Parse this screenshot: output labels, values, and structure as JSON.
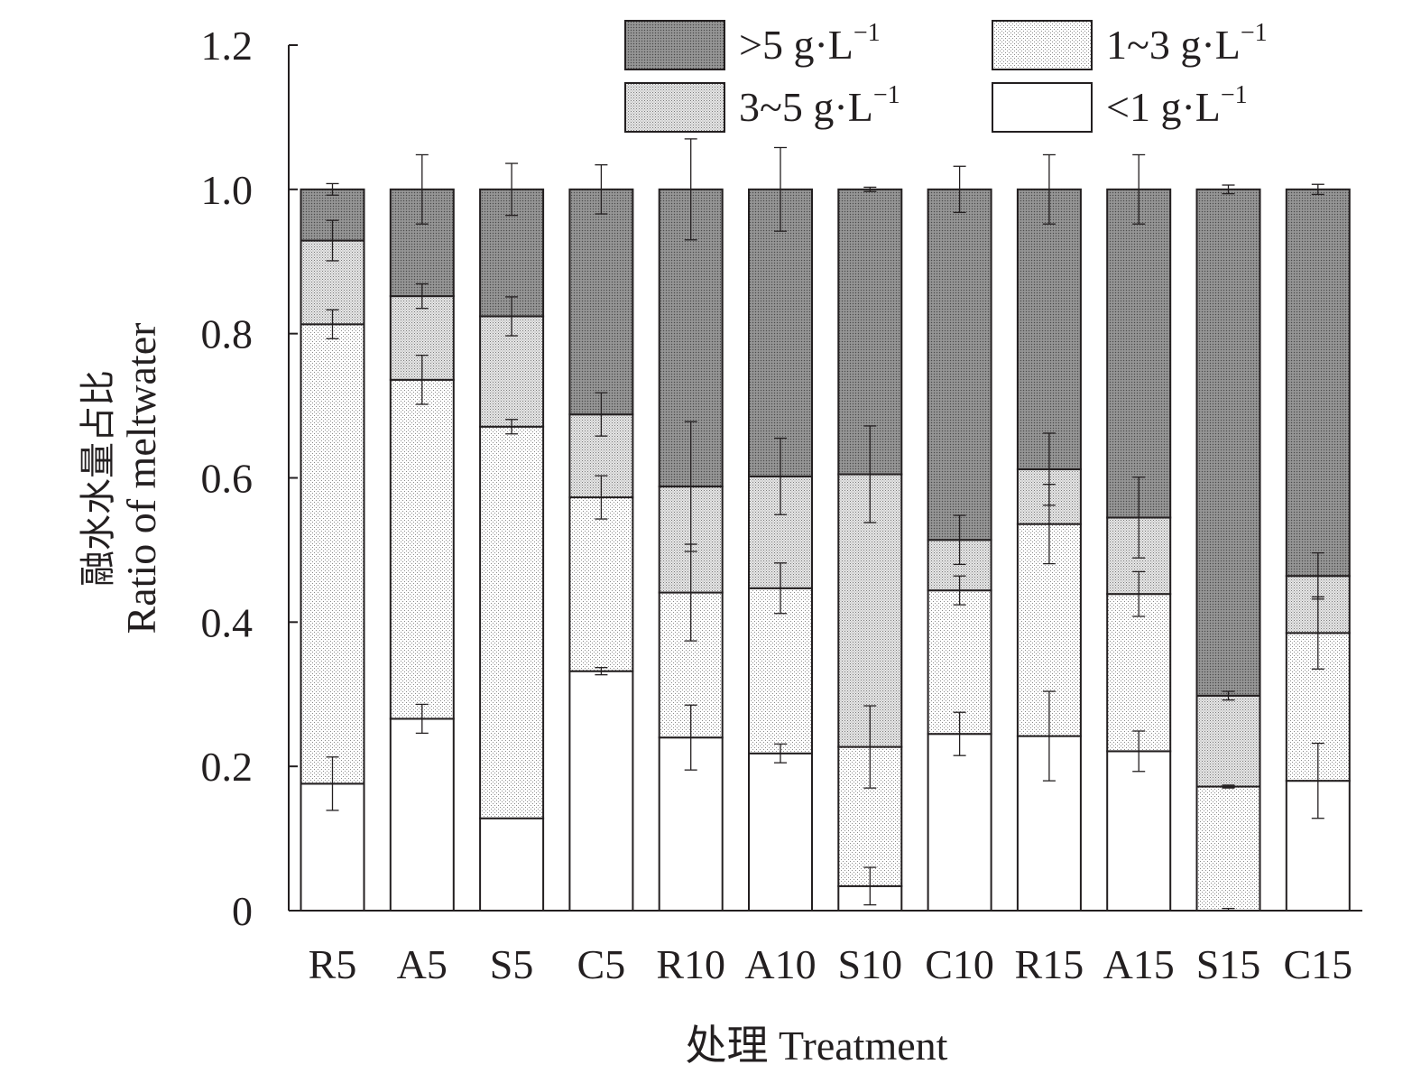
{
  "chart_data": {
    "type": "bar",
    "stacked": true,
    "title": "",
    "xlabel": "处理 Treatment",
    "ylabel": "融水水量占比",
    "ylabel_en": "Ratio of meltwater",
    "ylim": [
      0,
      1.2
    ],
    "yticks": [
      {
        "value": 0,
        "label": "0"
      },
      {
        "value": 0.2,
        "label": "0.2"
      },
      {
        "value": 0.4,
        "label": "0.4"
      },
      {
        "value": 0.6,
        "label": "0.6"
      },
      {
        "value": 0.8,
        "label": "0.8"
      },
      {
        "value": 1.0,
        "label": "1.0"
      },
      {
        "value": 1.2,
        "label": "1.2"
      }
    ],
    "categories": [
      "R5",
      "A5",
      "S5",
      "C5",
      "R10",
      "A10",
      "S10",
      "C10",
      "R15",
      "A15",
      "S15",
      "C15"
    ],
    "legend_position": "top-right",
    "grid": false,
    "series": [
      {
        "key": "lt1",
        "name": "<1 g·L",
        "unit_exp": "−1",
        "pattern": "white",
        "values": [
          0.176,
          0.266,
          0.128,
          0.332,
          0.24,
          0.218,
          0.034,
          0.245,
          0.242,
          0.221,
          0.0,
          0.18
        ],
        "errors": [
          0.037,
          0.02,
          0.0,
          0.005,
          0.045,
          0.013,
          0.026,
          0.03,
          0.062,
          0.028,
          0.003,
          0.052
        ]
      },
      {
        "key": "r1_3",
        "name": "1~3 g·L",
        "unit_exp": "−1",
        "pattern": "light-dots",
        "values": [
          0.637,
          0.47,
          0.543,
          0.241,
          0.201,
          0.229,
          0.193,
          0.199,
          0.294,
          0.218,
          0.172,
          0.205
        ],
        "errors": [
          0.02,
          0.034,
          0.01,
          0.03,
          0.067,
          0.035,
          0.057,
          0.02,
          0.055,
          0.031,
          0.002,
          0.05
        ]
      },
      {
        "key": "r3_5",
        "name": "3~5 g·L",
        "unit_exp": "−1",
        "pattern": "medium-dots",
        "values": [
          0.116,
          0.116,
          0.153,
          0.115,
          0.147,
          0.155,
          0.378,
          0.07,
          0.076,
          0.106,
          0.126,
          0.079
        ],
        "errors": [
          0.028,
          0.017,
          0.027,
          0.03,
          0.09,
          0.053,
          0.067,
          0.034,
          0.05,
          0.056,
          0.006,
          0.032
        ]
      },
      {
        "key": "gt5",
        "name": ">5 g·L",
        "unit_exp": "−1",
        "pattern": "dark-dots",
        "values": [
          0.071,
          0.148,
          0.176,
          0.312,
          0.412,
          0.398,
          0.395,
          0.486,
          0.388,
          0.455,
          0.702,
          0.536
        ],
        "errors": [
          0.008,
          0.048,
          0.036,
          0.034,
          0.07,
          0.058,
          0.003,
          0.032,
          0.048,
          0.048,
          0.006,
          0.007
        ]
      }
    ],
    "legend_order": [
      "gt5",
      "r1_3",
      "r3_5",
      "lt1"
    ]
  }
}
